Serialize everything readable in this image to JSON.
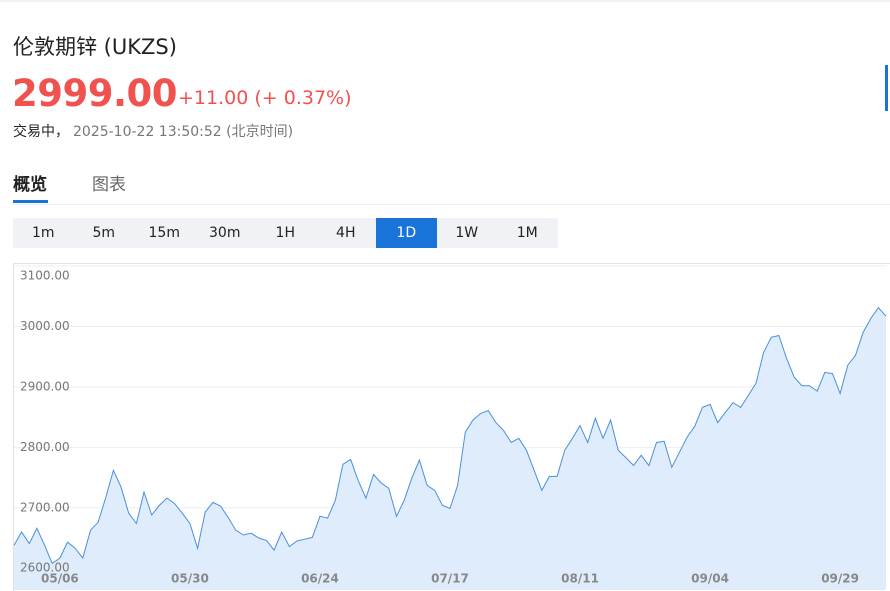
{
  "header": {
    "title": "伦敦期锌 (UKZS)",
    "price": "2999.00",
    "change": "+11.00 (+ 0.37%)",
    "status": "交易中，",
    "timestamp": "2025-10-22 13:50:52 (北京时间)"
  },
  "tabs": [
    "概览",
    "图表"
  ],
  "active_tab": 0,
  "intervals": [
    "1m",
    "5m",
    "15m",
    "30m",
    "1H",
    "4H",
    "1D",
    "1W",
    "1M"
  ],
  "active_interval": 6,
  "chart_data": {
    "type": "area",
    "color": "#4a90d9",
    "fill": "#deecfb",
    "grid": true,
    "ylim": [
      2564,
      3100
    ],
    "yticks": [
      {
        "value": 2600,
        "label": "2600.00"
      },
      {
        "value": 2700,
        "label": "2700.00"
      },
      {
        "value": 2800,
        "label": "2800.00"
      },
      {
        "value": 2900,
        "label": "2900.00"
      },
      {
        "value": 3000,
        "label": "3000.00"
      },
      {
        "value": 3100,
        "label": "3100.00"
      }
    ],
    "categories": [
      null,
      null,
      null,
      null,
      null,
      null,
      "05/06",
      null,
      null,
      null,
      null,
      null,
      null,
      null,
      null,
      null,
      null,
      null,
      null,
      null,
      null,
      null,
      null,
      "05/30",
      null,
      null,
      null,
      null,
      null,
      null,
      null,
      null,
      null,
      null,
      null,
      null,
      null,
      null,
      null,
      null,
      "06/24",
      null,
      null,
      null,
      null,
      null,
      null,
      null,
      null,
      null,
      null,
      null,
      null,
      null,
      null,
      null,
      null,
      "07/17",
      null,
      null,
      null,
      null,
      null,
      null,
      null,
      null,
      null,
      null,
      null,
      null,
      null,
      null,
      null,
      null,
      "08/11",
      null,
      null,
      null,
      null,
      null,
      null,
      null,
      null,
      null,
      null,
      null,
      null,
      null,
      null,
      null,
      null,
      "09/04",
      null,
      null,
      null,
      null,
      null,
      null,
      null,
      null,
      null,
      null,
      null,
      null,
      null,
      null,
      null,
      null,
      "09/29",
      null,
      null,
      null,
      null,
      null,
      null
    ],
    "values": [
      2638,
      2660,
      2641,
      2666,
      2638,
      2608,
      2617,
      2643,
      2633,
      2617,
      2663,
      2676,
      2717,
      2762,
      2734,
      2691,
      2674,
      2726,
      2688,
      2704,
      2716,
      2707,
      2691,
      2674,
      2633,
      2693,
      2709,
      2703,
      2684,
      2663,
      2655,
      2658,
      2650,
      2646,
      2630,
      2660,
      2636,
      2645,
      2648,
      2651,
      2686,
      2683,
      2712,
      2772,
      2780,
      2745,
      2716,
      2755,
      2741,
      2732,
      2686,
      2712,
      2749,
      2779,
      2737,
      2729,
      2704,
      2699,
      2737,
      2825,
      2845,
      2856,
      2861,
      2841,
      2828,
      2808,
      2815,
      2795,
      2762,
      2729,
      2752,
      2752,
      2795,
      2815,
      2836,
      2808,
      2848,
      2815,
      2845,
      2795,
      2783,
      2770,
      2787,
      2770,
      2808,
      2810,
      2767,
      2792,
      2817,
      2835,
      2866,
      2871,
      2841,
      2858,
      2874,
      2866,
      2886,
      2906,
      2957,
      2982,
      2985,
      2947,
      2916,
      2902,
      2902,
      2893,
      2924,
      2922,
      2889,
      2936,
      2952,
      2990,
      3013,
      3031,
      3017
    ]
  }
}
